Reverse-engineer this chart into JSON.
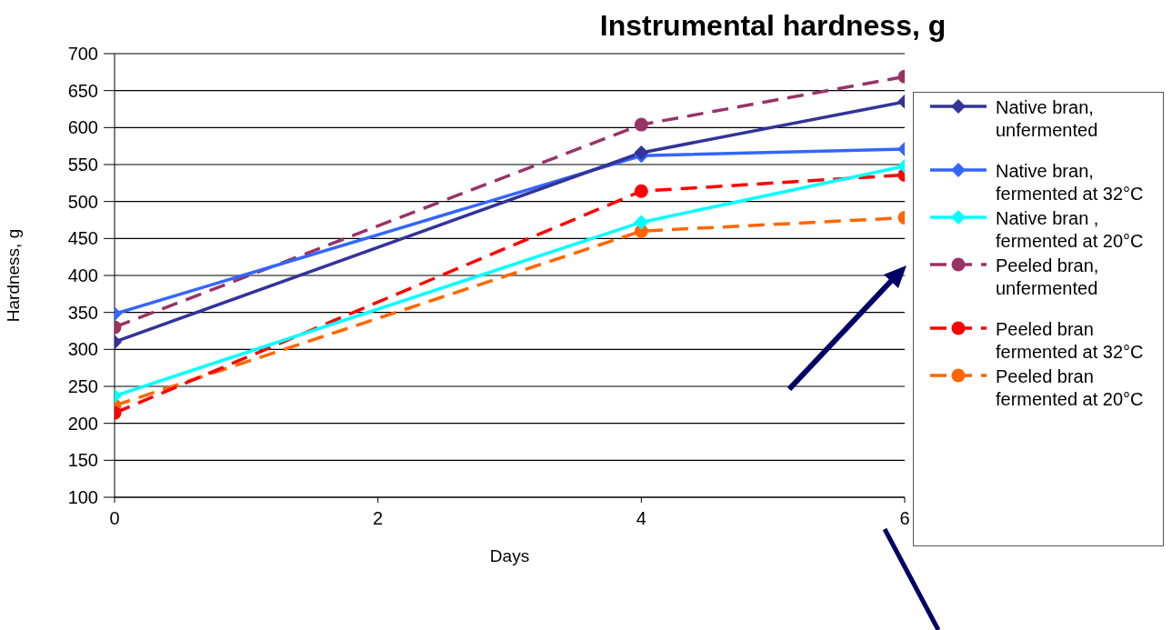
{
  "chart_data": {
    "type": "line",
    "title": "Instrumental hardness, g",
    "xlabel": "Days",
    "ylabel": "Hardness, g",
    "x": [
      0,
      4,
      6
    ],
    "xlim": [
      0,
      6
    ],
    "xticks": [
      0,
      2,
      4,
      6
    ],
    "ylim": [
      100,
      700
    ],
    "yticks": [
      100,
      150,
      200,
      250,
      300,
      350,
      400,
      450,
      500,
      550,
      600,
      650,
      700
    ],
    "grid": "y",
    "legend": "right",
    "series": [
      {
        "name": "Native bran, unfermented",
        "color": "#333399",
        "values": [
          310,
          566,
          635
        ],
        "marker": "diamond",
        "line_style": "solid"
      },
      {
        "name": "Native bran, fermented at 32°C",
        "color": "#3366ff",
        "values": [
          348,
          562,
          571
        ],
        "marker": "diamond",
        "line_style": "solid"
      },
      {
        "name": "Native bran , fermented at 20°C",
        "color": "#00ffff",
        "values": [
          237,
          472,
          548
        ],
        "marker": "diamond",
        "line_style": "solid"
      },
      {
        "name": "Peeled bran, unfermented",
        "color": "#993366",
        "values": [
          330,
          604,
          669
        ],
        "marker": "circle",
        "line_style": "dashed"
      },
      {
        "name": "Peeled bran fermented at 32°C",
        "color": "#ff0000",
        "values": [
          214,
          514,
          536
        ],
        "marker": "circle",
        "line_style": "dashed"
      },
      {
        "name": "Peeled bran fermented at 20°C",
        "color": "#ff6600",
        "values": [
          224,
          460,
          478
        ],
        "marker": "circle",
        "line_style": "dashed"
      }
    ]
  }
}
